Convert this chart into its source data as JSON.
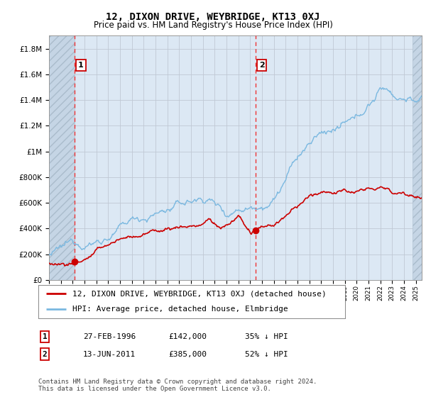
{
  "title": "12, DIXON DRIVE, WEYBRIDGE, KT13 0XJ",
  "subtitle": "Price paid vs. HM Land Registry's House Price Index (HPI)",
  "ylabel_ticks": [
    "£0",
    "£200K",
    "£400K",
    "£600K",
    "£800K",
    "£1M",
    "£1.2M",
    "£1.4M",
    "£1.6M",
    "£1.8M"
  ],
  "ytick_values": [
    0,
    200000,
    400000,
    600000,
    800000,
    1000000,
    1200000,
    1400000,
    1600000,
    1800000
  ],
  "ylim": [
    0,
    1900000
  ],
  "xlim_start": 1994.0,
  "xlim_end": 2025.5,
  "sale1_year": 1996.16,
  "sale1_price": 142000,
  "sale1_label": "1",
  "sale1_date": "27-FEB-1996",
  "sale1_pct": "35% ↓ HPI",
  "sale2_year": 2011.45,
  "sale2_price": 385000,
  "sale2_label": "2",
  "sale2_date": "13-JUN-2011",
  "sale2_pct": "52% ↓ HPI",
  "hpi_color": "#7ab8e0",
  "price_color": "#cc0000",
  "dashed_color": "#ee3333",
  "background_plot": "#dce8f4",
  "legend1": "12, DIXON DRIVE, WEYBRIDGE, KT13 0XJ (detached house)",
  "legend2": "HPI: Average price, detached house, Elmbridge",
  "footer": "Contains HM Land Registry data © Crown copyright and database right 2024.\nThis data is licensed under the Open Government Licence v3.0.",
  "title_fontsize": 10,
  "subtitle_fontsize": 8.5,
  "axis_fontsize": 7.5,
  "legend_fontsize": 8,
  "footer_fontsize": 6.5
}
